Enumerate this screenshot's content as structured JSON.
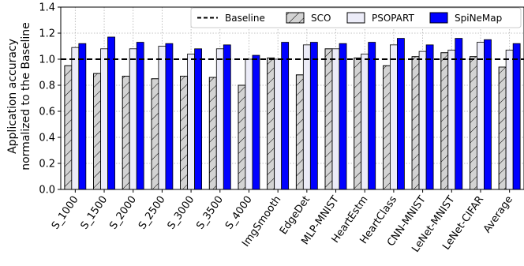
{
  "chart_data": {
    "type": "bar",
    "ylabel_line1": "Application accuracy",
    "ylabel_line2": "normalized to the Baseline",
    "ylim": [
      0.0,
      1.4
    ],
    "yticks": [
      "0.0",
      "0.2",
      "0.4",
      "0.6",
      "0.8",
      "1.0",
      "1.2",
      "1.4"
    ],
    "baseline": 1.0,
    "grid": true,
    "legend_position": "top-right",
    "categories": [
      "S_1000",
      "S_1500",
      "S_2000",
      "S_2500",
      "S_3000",
      "S_3500",
      "S_4000",
      "ImgSmooth",
      "EdgeDet",
      "MLP-MNIST",
      "HeartEstm",
      "HeartClass",
      "CNN-MNIST",
      "LeNet-MNIST",
      "LeNet-CIFAR",
      "Average"
    ],
    "legend": {
      "baseline": "Baseline",
      "sco": "SCO",
      "psopart": "PSOPART",
      "spinemap": "SpiNeMap"
    },
    "series": [
      {
        "name": "SCO",
        "values": [
          0.95,
          0.89,
          0.87,
          0.85,
          0.87,
          0.86,
          0.8,
          1.01,
          0.88,
          1.08,
          1.01,
          0.95,
          1.02,
          1.05,
          1.02,
          0.94
        ]
      },
      {
        "name": "PSOPART",
        "values": [
          1.09,
          1.08,
          1.08,
          1.1,
          1.04,
          1.08,
          1.0,
          1.0,
          1.11,
          1.08,
          1.04,
          1.11,
          1.06,
          1.07,
          1.13,
          1.07
        ]
      },
      {
        "name": "SpiNeMap",
        "values": [
          1.12,
          1.17,
          1.13,
          1.12,
          1.08,
          1.11,
          1.03,
          1.13,
          1.13,
          1.12,
          1.13,
          1.16,
          1.11,
          1.16,
          1.15,
          1.12
        ]
      }
    ],
    "colors": {
      "sco_fill": "#d3d3d3",
      "psopart_fill": "#ececf8",
      "spinemap_fill": "#0000ff",
      "edge": "#000000",
      "grid": "#b0b0b0"
    }
  }
}
